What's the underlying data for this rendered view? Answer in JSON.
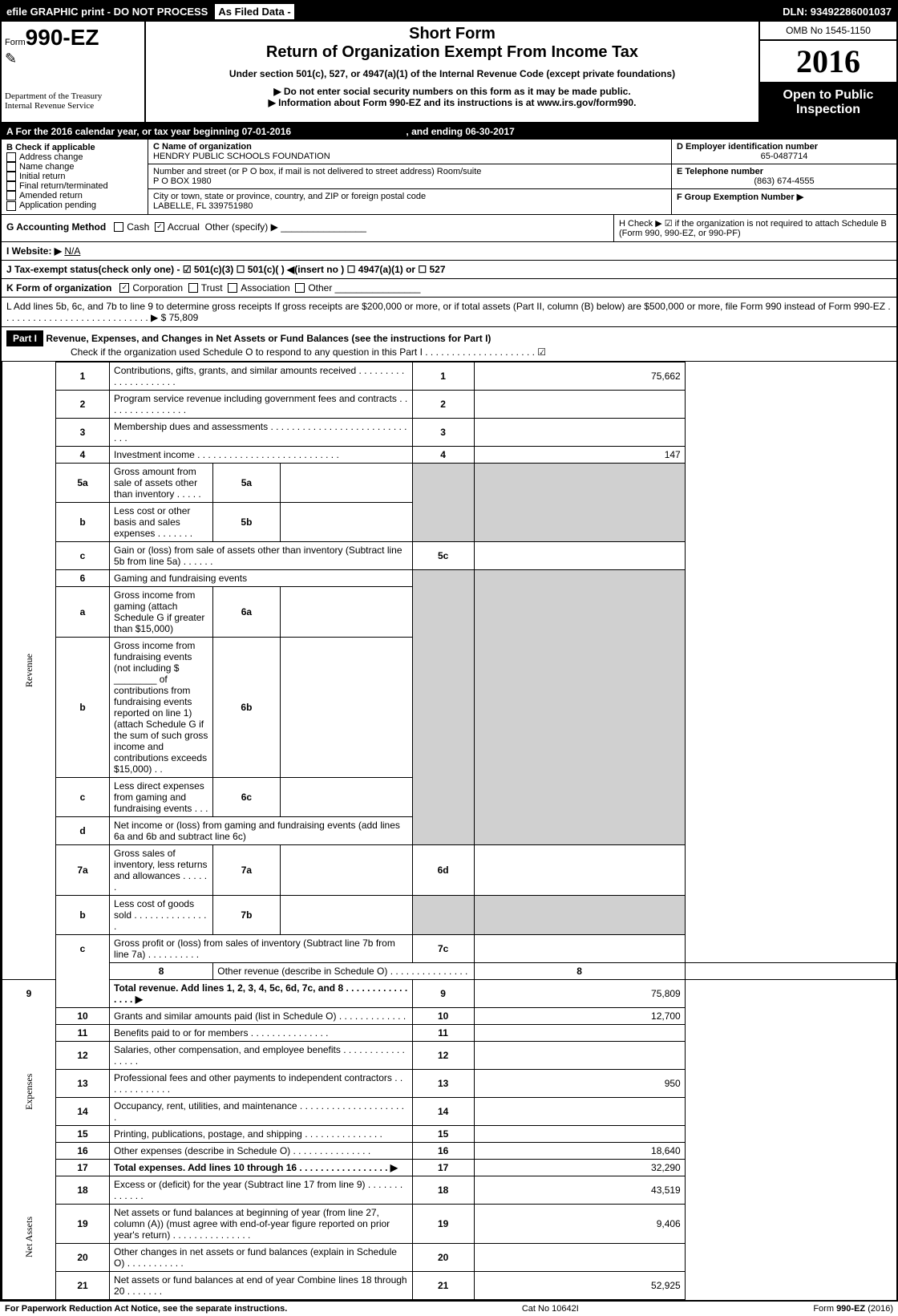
{
  "topbar": {
    "efile": "efile GRAPHIC print - DO NOT PROCESS",
    "asfiled": "As Filed Data -",
    "dln": "DLN: 93492286001037"
  },
  "header": {
    "form_word": "Form",
    "form_no": "990-EZ",
    "dept1": "Department of the Treasury",
    "dept2": "Internal Revenue Service",
    "short_form": "Short Form",
    "return_title": "Return of Organization Exempt From Income Tax",
    "under": "Under section 501(c), 527, or 4947(a)(1) of the Internal Revenue Code (except private foundations)",
    "donot": "▶ Do not enter social security numbers on this form as it may be made public.",
    "info": "▶ Information about Form 990-EZ and its instructions is at www.irs.gov/form990.",
    "omb": "OMB No 1545-1150",
    "year": "2016",
    "open1": "Open to Public",
    "open2": "Inspection"
  },
  "sectionA": {
    "text": "A  For the 2016 calendar year, or tax year beginning 07-01-2016",
    "ending": ", and ending 06-30-2017"
  },
  "boxB": {
    "title": "B  Check if applicable",
    "items": [
      "Address change",
      "Name change",
      "Initial return",
      "Final return/terminated",
      "Amended return",
      "Application pending"
    ]
  },
  "boxC": {
    "label": "C Name of organization",
    "name": "HENDRY PUBLIC SCHOOLS FOUNDATION",
    "street_label": "Number and street (or P O box, if mail is not delivered to street address)  Room/suite",
    "street": "P O BOX 1980",
    "city_label": "City or town, state or province, country, and ZIP or foreign postal code",
    "city": "LABELLE, FL  339751980"
  },
  "boxD": {
    "label": "D Employer identification number",
    "value": "65-0487714"
  },
  "boxE": {
    "label": "E Telephone number",
    "value": "(863) 674-4555"
  },
  "boxF": {
    "label": "F Group Exemption Number   ▶"
  },
  "rowG": {
    "label": "G Accounting Method",
    "cash": "Cash",
    "accrual": "Accrual",
    "other": "Other (specify) ▶"
  },
  "rowH": {
    "text": "H  Check ▶  ☑  if the organization is not required to attach Schedule B (Form 990, 990-EZ, or 990-PF)"
  },
  "rowI": {
    "label": "I Website: ▶",
    "value": "N/A"
  },
  "rowJ": {
    "text": "J Tax-exempt status(check only one) - ☑ 501(c)(3)  ☐ 501(c)( ) ◀(insert no ) ☐ 4947(a)(1) or ☐ 527"
  },
  "rowK": {
    "label": "K Form of organization",
    "corp": "Corporation",
    "trust": "Trust",
    "assoc": "Association",
    "other": "Other"
  },
  "rowL": {
    "text": "L Add lines 5b, 6c, and 7b to line 9 to determine gross receipts  If gross receipts are $200,000 or more, or if total assets (Part II, column (B) below) are $500,000 or more, file Form 990 instead of Form 990-EZ . . . . . . . . . . . . . . . . . . . . . . . . . . . .  ▶ $ 75,809"
  },
  "part1": {
    "label": "Part I",
    "title": "Revenue, Expenses, and Changes in Net Assets or Fund Balances (see the instructions for Part I)",
    "check": "Check if the organization used Schedule O to respond to any question in this Part I . . . . . . . . . . . . . . . . . . . . . ☑"
  },
  "sides": {
    "revenue": "Revenue",
    "expenses": "Expenses",
    "netassets": "Net Assets"
  },
  "lines": {
    "l1": {
      "no": "1",
      "desc": "Contributions, gifts, grants, and similar amounts received . . . . . . . . . . . . . . . . . . . . .",
      "col": "1",
      "val": "75,662"
    },
    "l2": {
      "no": "2",
      "desc": "Program service revenue including government fees and contracts . . . . . . . . . . . . . . . .",
      "col": "2",
      "val": ""
    },
    "l3": {
      "no": "3",
      "desc": "Membership dues and assessments . . . . . . . . . . . . . . . . . . . . . . . . . . . . .",
      "col": "3",
      "val": ""
    },
    "l4": {
      "no": "4",
      "desc": "Investment income . . . . . . . . . . . . . . . . . . . . . . . . . . .",
      "col": "4",
      "val": "147"
    },
    "l5a": {
      "no": "5a",
      "desc": "Gross amount from sale of assets other than inventory . . . . .",
      "sub": "5a",
      "subval": ""
    },
    "l5b": {
      "no": "b",
      "desc": "Less  cost or other basis and sales expenses . . . . . . .",
      "sub": "5b",
      "subval": ""
    },
    "l5c": {
      "no": "c",
      "desc": "Gain or (loss) from sale of assets other than inventory (Subtract line 5b from line 5a) . . . . . .",
      "col": "5c",
      "val": ""
    },
    "l6": {
      "no": "6",
      "desc": "Gaming and fundraising events"
    },
    "l6a": {
      "no": "a",
      "desc": "Gross income from gaming (attach Schedule G if greater than $15,000)",
      "sub": "6a",
      "subval": ""
    },
    "l6b": {
      "no": "b",
      "desc": "Gross income from fundraising events (not including $ ________ of contributions from fundraising events reported on line 1) (attach Schedule G if the sum of such gross income and contributions exceeds $15,000)   . .",
      "sub": "6b",
      "subval": ""
    },
    "l6c": {
      "no": "c",
      "desc": "Less  direct expenses from gaming and fundraising events    . . .",
      "sub": "6c",
      "subval": ""
    },
    "l6d": {
      "no": "d",
      "desc": "Net income or (loss) from gaming and fundraising events (add lines 6a and 6b and subtract line 6c)",
      "col": "6d",
      "val": ""
    },
    "l7a": {
      "no": "7a",
      "desc": "Gross sales of inventory, less returns and allowances . . . . . .",
      "sub": "7a",
      "subval": ""
    },
    "l7b": {
      "no": "b",
      "desc": "Less  cost of goods sold       . . . . . . . . . . . . . . .",
      "sub": "7b",
      "subval": ""
    },
    "l7c": {
      "no": "c",
      "desc": "Gross profit or (loss) from sales of inventory (Subtract line 7b from line 7a) . . . . . . . . . .",
      "col": "7c",
      "val": ""
    },
    "l8": {
      "no": "8",
      "desc": "Other revenue (describe in Schedule O)              . . . . . . . . . . . . . . .",
      "col": "8",
      "val": ""
    },
    "l9": {
      "no": "9",
      "desc": "Total revenue. Add lines 1, 2, 3, 4, 5c, 6d, 7c, and 8 . . . . . . . . . . . . . . . .  ▶",
      "col": "9",
      "val": "75,809",
      "bold": true
    },
    "l10": {
      "no": "10",
      "desc": "Grants and similar amounts paid (list in Schedule O)         . . . . . . . . . . . . .",
      "col": "10",
      "val": "12,700"
    },
    "l11": {
      "no": "11",
      "desc": "Benefits paid to or for members               . . . . . . . . . . . . . . .",
      "col": "11",
      "val": ""
    },
    "l12": {
      "no": "12",
      "desc": "Salaries, other compensation, and employee benefits . . . . . . . . . . . . . . . . .",
      "col": "12",
      "val": ""
    },
    "l13": {
      "no": "13",
      "desc": "Professional fees and other payments to independent contractors  . . . . . . . . . . . . .",
      "col": "13",
      "val": "950"
    },
    "l14": {
      "no": "14",
      "desc": "Occupancy, rent, utilities, and maintenance . . . . . . . . . . . . . . . . . . . . .",
      "col": "14",
      "val": ""
    },
    "l15": {
      "no": "15",
      "desc": "Printing, publications, postage, and shipping         . . . . . . . . . . . . . . .",
      "col": "15",
      "val": ""
    },
    "l16": {
      "no": "16",
      "desc": "Other expenses (describe in Schedule O)           . . . . . . . . . . . . . . .",
      "col": "16",
      "val": "18,640"
    },
    "l17": {
      "no": "17",
      "desc": "Total expenses. Add lines 10 through 16       . . . . . . . . . . . . . . . . .  ▶",
      "col": "17",
      "val": "32,290",
      "bold": true
    },
    "l18": {
      "no": "18",
      "desc": "Excess or (deficit) for the year (Subtract line 17 from line 9)     . . . . . . . . . . . . .",
      "col": "18",
      "val": "43,519"
    },
    "l19": {
      "no": "19",
      "desc": "Net assets or fund balances at beginning of year (from line 27, column (A)) (must agree with end-of-year figure reported on prior year's return)         . . . . . . . . . . . . . . .",
      "col": "19",
      "val": "9,406"
    },
    "l20": {
      "no": "20",
      "desc": "Other changes in net assets or fund balances (explain in Schedule O)   . . . . . . . . . . .",
      "col": "20",
      "val": ""
    },
    "l21": {
      "no": "21",
      "desc": "Net assets or fund balances at end of year  Combine lines 18 through 20       . . . . . . .",
      "col": "21",
      "val": "52,925"
    }
  },
  "footer": {
    "left": "For Paperwork Reduction Act Notice, see the separate instructions.",
    "mid": "Cat No 10642I",
    "right": "Form 990-EZ (2016)"
  }
}
